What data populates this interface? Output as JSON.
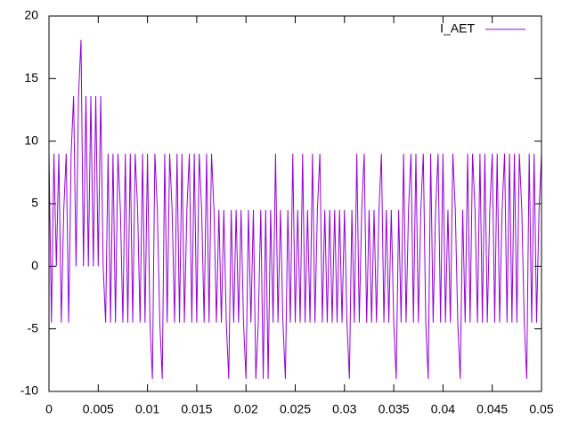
{
  "chart_data": {
    "type": "line",
    "x": [
      0,
      0.00025,
      0.0005,
      0.00075,
      0.001,
      0.00125,
      0.0015,
      0.00175,
      0.002,
      0.00225,
      0.0025,
      0.00275,
      0.003,
      0.00325,
      0.0035,
      0.00375,
      0.004,
      0.00425,
      0.0045,
      0.00475,
      0.005,
      0.00525,
      0.0055,
      0.00575,
      0.006,
      0.00625,
      0.0065,
      0.00675,
      0.007,
      0.00725,
      0.0075,
      0.00775,
      0.008,
      0.00825,
      0.0085,
      0.00875,
      0.009,
      0.00925,
      0.0095,
      0.00975,
      0.01,
      0.01025,
      0.0105,
      0.01075,
      0.011,
      0.01125,
      0.0115,
      0.01175,
      0.012,
      0.01225,
      0.0125,
      0.01275,
      0.013,
      0.01325,
      0.0135,
      0.01375,
      0.014,
      0.01425,
      0.0145,
      0.01475,
      0.015,
      0.01525,
      0.0155,
      0.01575,
      0.016,
      0.01625,
      0.0165,
      0.01675,
      0.017,
      0.01725,
      0.0175,
      0.01775,
      0.018,
      0.01825,
      0.0185,
      0.01875,
      0.019,
      0.01925,
      0.0195,
      0.01975,
      0.02,
      0.02025,
      0.0205,
      0.02075,
      0.021,
      0.02125,
      0.0215,
      0.02175,
      0.022,
      0.02225,
      0.0225,
      0.02275,
      0.023,
      0.02325,
      0.0235,
      0.02375,
      0.024,
      0.02425,
      0.0245,
      0.02475,
      0.025,
      0.02525,
      0.0255,
      0.02575,
      0.026,
      0.02625,
      0.0265,
      0.02675,
      0.027,
      0.02725,
      0.0275,
      0.02775,
      0.028,
      0.02825,
      0.0285,
      0.02875,
      0.029,
      0.02925,
      0.0295,
      0.02975,
      0.03,
      0.03025,
      0.0305,
      0.03075,
      0.031,
      0.03125,
      0.0315,
      0.03175,
      0.032,
      0.03225,
      0.0325,
      0.03275,
      0.033,
      0.03325,
      0.0335,
      0.03375,
      0.034,
      0.03425,
      0.0345,
      0.03475,
      0.035,
      0.03525,
      0.0355,
      0.03575,
      0.036,
      0.03625,
      0.0365,
      0.03675,
      0.037,
      0.03725,
      0.0375,
      0.03775,
      0.038,
      0.03825,
      0.0385,
      0.03875,
      0.039,
      0.03925,
      0.0395,
      0.03975,
      0.04,
      0.04025,
      0.0405,
      0.04075,
      0.041,
      0.04125,
      0.0415,
      0.04175,
      0.042,
      0.04225,
      0.0425,
      0.04275,
      0.043,
      0.04325,
      0.0435,
      0.04375,
      0.044,
      0.04425,
      0.0445,
      0.04475,
      0.045,
      0.04525,
      0.0455,
      0.04575,
      0.046,
      0.04625,
      0.0465,
      0.04675,
      0.047,
      0.04725,
      0.0475,
      0.04775,
      0.048,
      0.04825,
      0.0485,
      0.04875,
      0.049,
      0.04925,
      0.0495,
      0.04975,
      0.05
    ],
    "series": [
      {
        "name": "I_AET",
        "color": "#9400d3",
        "values": [
          9,
          -4.5,
          9,
          0,
          9,
          -4.5,
          4.5,
          9,
          -4.5,
          9,
          13.6,
          0,
          13.6,
          18.1,
          0,
          13.6,
          0,
          13.6,
          0,
          13.6,
          0,
          13.6,
          0,
          -4.5,
          9,
          -4.5,
          9,
          -4.5,
          9,
          4.5,
          -4.5,
          9,
          -4.5,
          9,
          -4.5,
          9,
          4.5,
          -4.5,
          9,
          -4.5,
          9,
          -4.5,
          -9,
          9,
          4.5,
          -4.5,
          -9,
          9,
          -4.5,
          9,
          4.5,
          -4.5,
          9,
          -4.5,
          9,
          -4.5,
          4.5,
          9,
          -4.5,
          9,
          -4.5,
          9,
          4.5,
          -4.5,
          9,
          -4.5,
          9,
          4.5,
          -4.5,
          4.5,
          -4.5,
          4.5,
          -4.5,
          -9,
          4.5,
          -4.5,
          4.5,
          -4.5,
          4.5,
          -4.5,
          -9,
          4.5,
          -4.5,
          4.5,
          -9,
          -4.5,
          4.5,
          -9,
          4.5,
          -9,
          4.5,
          -4.5,
          9,
          -4.5,
          4.5,
          -4.5,
          -9,
          4.5,
          -4.5,
          9,
          -4.5,
          4.5,
          -4.5,
          9,
          -4.5,
          4.5,
          -4.5,
          9,
          -4.5,
          4.5,
          9,
          -4.5,
          4.5,
          -4.5,
          4.5,
          -4.5,
          4.5,
          -4.5,
          4.5,
          -4.5,
          4.5,
          -4.5,
          -9,
          4.5,
          -4.5,
          9,
          -4.5,
          4.5,
          9,
          -4.5,
          4.5,
          -4.5,
          4.5,
          -4.5,
          4.5,
          9,
          -4.5,
          4.5,
          -4.5,
          4.5,
          -4.5,
          -9,
          4.5,
          -4.5,
          9,
          -4.5,
          4.5,
          9,
          -4.5,
          9,
          -4.5,
          4.5,
          9,
          -4.5,
          -9,
          9,
          -4.5,
          4.5,
          9,
          -4.5,
          9,
          -4.5,
          4.5,
          -4.5,
          9,
          4.5,
          -4.5,
          -9,
          4.5,
          -4.5,
          9,
          -4.5,
          9,
          4.5,
          -4.5,
          9,
          -4.5,
          9,
          -4.5,
          4.5,
          9,
          -4.5,
          9,
          -4.5,
          4.5,
          9,
          -4.5,
          9,
          -4.5,
          9,
          -4.5,
          9,
          4.5,
          -4.5,
          -9,
          9,
          -4.5,
          9,
          -4.5,
          4.5,
          9
        ]
      }
    ],
    "xlim": [
      0,
      0.05
    ],
    "xticks": [
      0,
      0.005,
      0.01,
      0.015,
      0.02,
      0.025,
      0.03,
      0.035,
      0.04,
      0.045,
      0.05
    ],
    "ylim": [
      -10,
      20
    ],
    "yticks": [
      -10,
      -5,
      0,
      5,
      10,
      15,
      20
    ],
    "legend": "top-right"
  }
}
